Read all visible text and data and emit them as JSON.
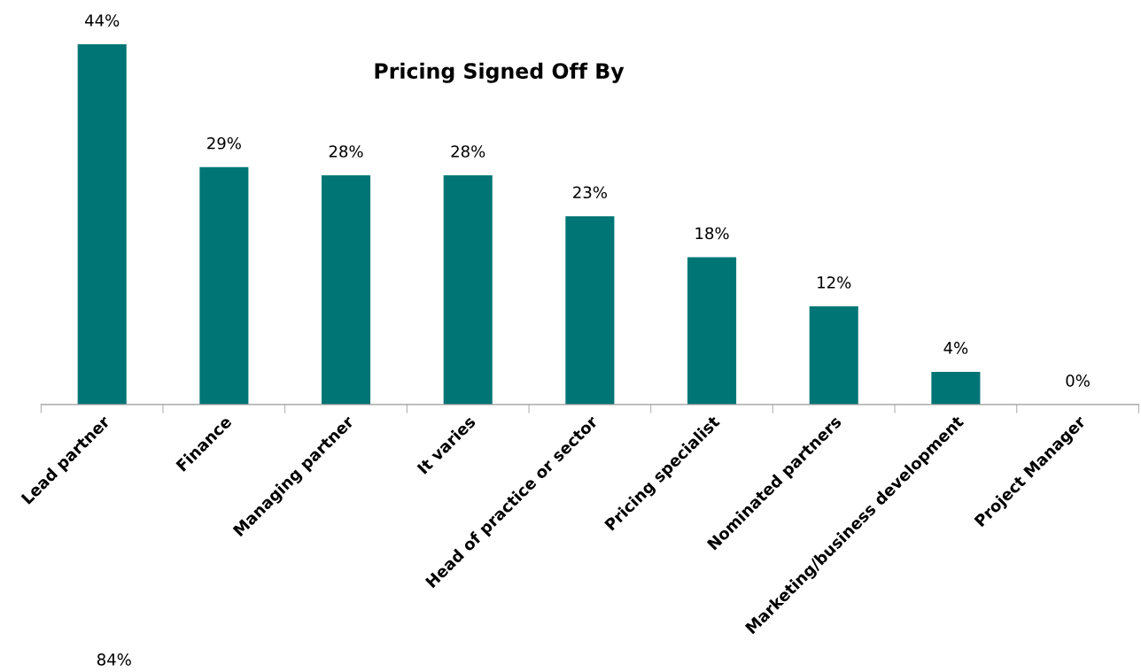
{
  "chart_data": {
    "type": "bar",
    "title": "Pricing Signed Off By",
    "categories": [
      "Lead partner",
      "Finance",
      "Managing partner",
      "It varies",
      "Head of practice or sector",
      "Pricing specialist",
      "Nominated partners",
      "Marketing/business development",
      "Project Manager"
    ],
    "values": [
      44,
      29,
      28,
      28,
      23,
      18,
      12,
      4,
      0
    ],
    "value_labels": [
      "44%",
      "29%",
      "28%",
      "28%",
      "23%",
      "18%",
      "12%",
      "4%",
      "0%"
    ],
    "color": "#007575",
    "annotations": [
      "84%"
    ],
    "grid": false,
    "legend": false,
    "tick_labels": "x"
  }
}
